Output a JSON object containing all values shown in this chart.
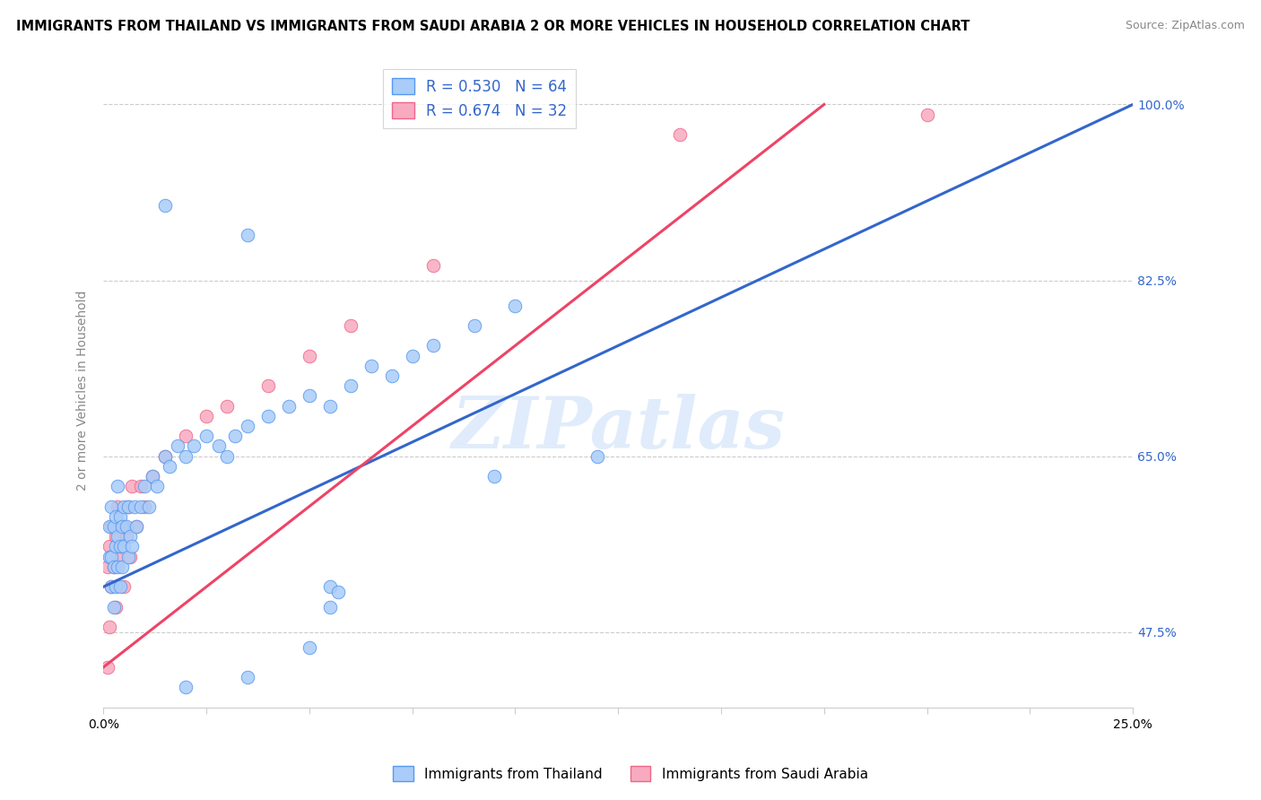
{
  "title": "IMMIGRANTS FROM THAILAND VS IMMIGRANTS FROM SAUDI ARABIA 2 OR MORE VEHICLES IN HOUSEHOLD CORRELATION CHART",
  "source": "Source: ZipAtlas.com",
  "legend_blue_label": "Immigrants from Thailand",
  "legend_pink_label": "Immigrants from Saudi Arabia",
  "R_blue": 0.53,
  "N_blue": 64,
  "R_pink": 0.674,
  "N_pink": 32,
  "xmin": 0.0,
  "xmax": 25.0,
  "ymin": 40.0,
  "ymax": 103.0,
  "yticks": [
    47.5,
    65.0,
    82.5,
    100.0
  ],
  "blue_color": "#aaccf8",
  "pink_color": "#f8aac0",
  "blue_edge_color": "#5599ee",
  "pink_edge_color": "#ee6688",
  "blue_line_color": "#3366cc",
  "pink_line_color": "#ee4466",
  "watermark": "ZIPatlas",
  "blue_line_x0": 0.0,
  "blue_line_y0": 52.0,
  "blue_line_x1": 25.0,
  "blue_line_y1": 100.0,
  "pink_line_x0": 0.0,
  "pink_line_y0": 44.0,
  "pink_line_x1": 17.5,
  "pink_line_y1": 100.0,
  "blue_points": [
    [
      0.15,
      55.0
    ],
    [
      0.15,
      58.0
    ],
    [
      0.2,
      52.0
    ],
    [
      0.2,
      55.0
    ],
    [
      0.2,
      60.0
    ],
    [
      0.25,
      50.0
    ],
    [
      0.25,
      54.0
    ],
    [
      0.25,
      58.0
    ],
    [
      0.3,
      52.0
    ],
    [
      0.3,
      56.0
    ],
    [
      0.3,
      59.0
    ],
    [
      0.35,
      54.0
    ],
    [
      0.35,
      57.0
    ],
    [
      0.35,
      62.0
    ],
    [
      0.4,
      52.0
    ],
    [
      0.4,
      56.0
    ],
    [
      0.4,
      59.0
    ],
    [
      0.45,
      54.0
    ],
    [
      0.45,
      58.0
    ],
    [
      0.5,
      56.0
    ],
    [
      0.5,
      60.0
    ],
    [
      0.55,
      58.0
    ],
    [
      0.6,
      55.0
    ],
    [
      0.6,
      60.0
    ],
    [
      0.65,
      57.0
    ],
    [
      0.7,
      56.0
    ],
    [
      0.75,
      60.0
    ],
    [
      0.8,
      58.0
    ],
    [
      0.9,
      60.0
    ],
    [
      1.0,
      62.0
    ],
    [
      1.1,
      60.0
    ],
    [
      1.2,
      63.0
    ],
    [
      1.3,
      62.0
    ],
    [
      1.5,
      65.0
    ],
    [
      1.6,
      64.0
    ],
    [
      1.8,
      66.0
    ],
    [
      2.0,
      65.0
    ],
    [
      2.2,
      66.0
    ],
    [
      2.5,
      67.0
    ],
    [
      2.8,
      66.0
    ],
    [
      3.0,
      65.0
    ],
    [
      3.2,
      67.0
    ],
    [
      3.5,
      68.0
    ],
    [
      4.0,
      69.0
    ],
    [
      4.5,
      70.0
    ],
    [
      5.0,
      71.0
    ],
    [
      5.5,
      70.0
    ],
    [
      6.0,
      72.0
    ],
    [
      6.5,
      74.0
    ],
    [
      7.0,
      73.0
    ],
    [
      7.5,
      75.0
    ],
    [
      8.0,
      76.0
    ],
    [
      9.0,
      78.0
    ],
    [
      10.0,
      80.0
    ],
    [
      1.5,
      90.0
    ],
    [
      3.5,
      87.0
    ],
    [
      9.5,
      63.0
    ],
    [
      12.0,
      65.0
    ],
    [
      5.5,
      52.0
    ],
    [
      5.5,
      50.0
    ],
    [
      5.7,
      51.5
    ],
    [
      5.0,
      46.0
    ],
    [
      3.5,
      43.0
    ],
    [
      2.0,
      42.0
    ]
  ],
  "pink_points": [
    [
      0.1,
      54.0
    ],
    [
      0.15,
      48.0
    ],
    [
      0.15,
      56.0
    ],
    [
      0.2,
      52.0
    ],
    [
      0.2,
      58.0
    ],
    [
      0.25,
      54.0
    ],
    [
      0.3,
      50.0
    ],
    [
      0.3,
      57.0
    ],
    [
      0.35,
      55.0
    ],
    [
      0.35,
      60.0
    ],
    [
      0.4,
      56.0
    ],
    [
      0.5,
      52.0
    ],
    [
      0.5,
      58.0
    ],
    [
      0.55,
      57.0
    ],
    [
      0.6,
      60.0
    ],
    [
      0.65,
      55.0
    ],
    [
      0.7,
      62.0
    ],
    [
      0.8,
      58.0
    ],
    [
      0.9,
      62.0
    ],
    [
      1.0,
      60.0
    ],
    [
      1.2,
      63.0
    ],
    [
      1.5,
      65.0
    ],
    [
      2.0,
      67.0
    ],
    [
      2.5,
      69.0
    ],
    [
      3.0,
      70.0
    ],
    [
      4.0,
      72.0
    ],
    [
      5.0,
      75.0
    ],
    [
      6.0,
      78.0
    ],
    [
      0.1,
      44.0
    ],
    [
      8.0,
      84.0
    ],
    [
      14.0,
      97.0
    ],
    [
      20.0,
      99.0
    ]
  ]
}
